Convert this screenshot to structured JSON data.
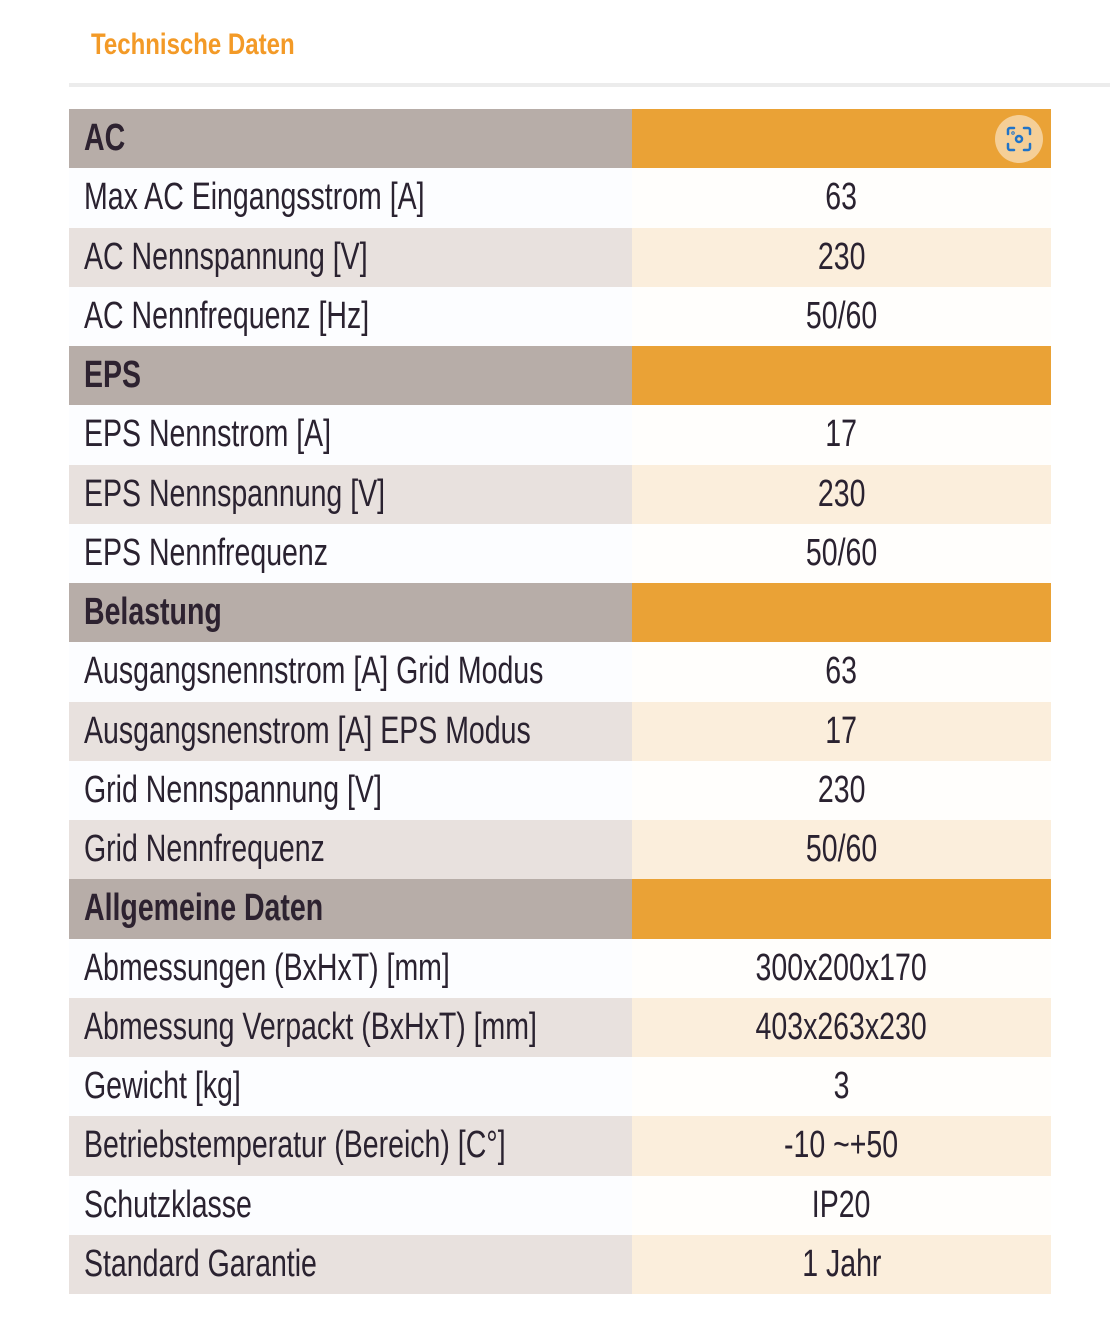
{
  "title": "Technische Daten",
  "sections": [
    {
      "header": "AC",
      "rows": [
        [
          "Max AC Eingangsstrom [A]",
          "63"
        ],
        [
          "AC Nennspannung [V]",
          "230"
        ],
        [
          "AC Nennfrequenz [Hz]",
          "50/60"
        ]
      ]
    },
    {
      "header": "EPS",
      "rows": [
        [
          "EPS Nennstrom [A]",
          "17"
        ],
        [
          "EPS Nennspannung [V]",
          "230"
        ],
        [
          "EPS Nennfrequenz",
          "50/60"
        ]
      ]
    },
    {
      "header": "Belastung",
      "rows": [
        [
          "Ausgangsnennstrom [A] Grid Modus",
          "63"
        ],
        [
          "Ausgangsnenstrom [A] EPS Modus",
          "17"
        ],
        [
          "Grid Nennspannung [V]",
          "230"
        ],
        [
          "Grid Nennfrequenz",
          "50/60"
        ]
      ]
    },
    {
      "header": "Allgemeine Daten",
      "rows": [
        [
          "Abmessungen (BxHxT) [mm]",
          "300x200x170"
        ],
        [
          "Abmessung Verpackt (BxHxT) [mm]",
          "403x263x230"
        ],
        [
          "Gewicht [kg]",
          "3"
        ],
        [
          "Betriebstemperatur (Bereich) [C°]",
          "-10 ~+50"
        ],
        [
          "Schutzklasse",
          "IP20"
        ],
        [
          "Standard Garantie",
          "1 Jahr"
        ]
      ]
    }
  ],
  "icons": {
    "scan": "camera-scan-icon"
  }
}
